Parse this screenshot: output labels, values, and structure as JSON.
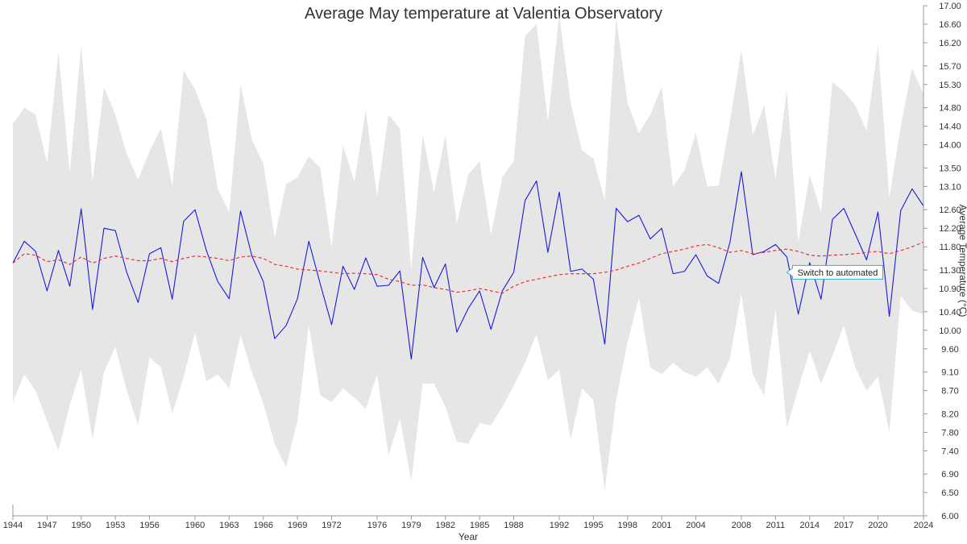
{
  "chart_data": {
    "type": "line",
    "title": "Average May temperature at Valentia Observatory",
    "xlabel": "Year",
    "ylabel": "Average Temperature (°C)",
    "xlim": [
      1944,
      2024
    ],
    "ylim": [
      6.0,
      17.0
    ],
    "x_ticks": [
      1944,
      1947,
      1950,
      1953,
      1956,
      1960,
      1963,
      1966,
      1969,
      1972,
      1976,
      1979,
      1982,
      1985,
      1988,
      1992,
      1995,
      1998,
      2001,
      2004,
      2008,
      2011,
      2014,
      2017,
      2020,
      2024
    ],
    "y_ticks": [
      6.0,
      6.5,
      6.9,
      7.4,
      7.8,
      8.2,
      8.7,
      9.1,
      9.6,
      10.0,
      10.4,
      10.9,
      11.3,
      11.8,
      12.2,
      12.6,
      13.1,
      13.5,
      14.0,
      14.4,
      14.8,
      15.3,
      15.7,
      16.2,
      16.6,
      17.0
    ],
    "y_ticks_label": [
      "6.00",
      "6.50",
      "6.90",
      "7.40",
      "7.80",
      "8.20",
      "8.70",
      "9.10",
      "9.60",
      "10.00",
      "10.40",
      "10.90",
      "11.30",
      "11.80",
      "12.20",
      "12.60",
      "13.10",
      "13.50",
      "14.00",
      "14.40",
      "14.80",
      "15.30",
      "15.70",
      "16.20",
      "16.60",
      "17.00"
    ],
    "years": [
      1944,
      1945,
      1946,
      1947,
      1948,
      1949,
      1950,
      1951,
      1952,
      1953,
      1954,
      1955,
      1956,
      1957,
      1958,
      1959,
      1960,
      1961,
      1962,
      1963,
      1964,
      1965,
      1966,
      1967,
      1968,
      1969,
      1970,
      1971,
      1972,
      1973,
      1974,
      1975,
      1976,
      1977,
      1978,
      1979,
      1980,
      1981,
      1982,
      1983,
      1984,
      1985,
      1986,
      1987,
      1988,
      1989,
      1990,
      1991,
      1992,
      1993,
      1994,
      1995,
      1996,
      1997,
      1998,
      1999,
      2000,
      2001,
      2002,
      2003,
      2004,
      2005,
      2006,
      2007,
      2008,
      2009,
      2010,
      2011,
      2012,
      2013,
      2014,
      2015,
      2016,
      2017,
      2018,
      2019,
      2020,
      2021,
      2022,
      2023,
      2024
    ],
    "series": [
      {
        "color": "#1a1adb",
        "style": "solid",
        "values": [
          11.45,
          11.92,
          11.7,
          10.85,
          11.72,
          10.95,
          12.62,
          10.45,
          12.2,
          12.15,
          11.25,
          10.6,
          11.65,
          11.78,
          10.67,
          12.35,
          12.6,
          11.72,
          11.05,
          10.68,
          12.57,
          11.6,
          11.05,
          9.82,
          10.1,
          10.68,
          11.92,
          11.0,
          10.12,
          11.38,
          10.88,
          11.56,
          10.95,
          10.97,
          11.28,
          9.38,
          11.57,
          10.92,
          11.43,
          9.96,
          10.47,
          10.85,
          10.02,
          10.85,
          11.25,
          12.8,
          13.22,
          11.68,
          12.98,
          11.27,
          11.32,
          11.1,
          9.7,
          12.63,
          12.34,
          12.48,
          11.97,
          12.2,
          11.22,
          11.27,
          11.63,
          11.17,
          11.01,
          11.9,
          13.42,
          11.63,
          11.7,
          11.85,
          11.58,
          10.35,
          11.46,
          10.67,
          12.39,
          12.63,
          12.08,
          11.52,
          12.55,
          10.3,
          12.58,
          13.05,
          12.68
        ]
      },
      {
        "color": "#e63333",
        "style": "dashed",
        "values": [
          11.45,
          11.65,
          11.62,
          11.48,
          11.52,
          11.42,
          11.58,
          11.45,
          11.55,
          11.6,
          11.55,
          11.5,
          11.5,
          11.55,
          11.48,
          11.55,
          11.6,
          11.58,
          11.55,
          11.5,
          11.58,
          11.6,
          11.55,
          11.42,
          11.38,
          11.32,
          11.3,
          11.28,
          11.25,
          11.22,
          11.23,
          11.22,
          11.2,
          11.1,
          11.05,
          10.97,
          10.98,
          10.92,
          10.88,
          10.82,
          10.85,
          10.9,
          10.85,
          10.8,
          10.95,
          11.05,
          11.1,
          11.15,
          11.2,
          11.22,
          11.22,
          11.22,
          11.25,
          11.3,
          11.38,
          11.45,
          11.55,
          11.65,
          11.7,
          11.75,
          11.82,
          11.85,
          11.78,
          11.68,
          11.72,
          11.65,
          11.68,
          11.72,
          11.75,
          11.7,
          11.62,
          11.6,
          11.62,
          11.63,
          11.65,
          11.68,
          11.7,
          11.65,
          11.72,
          11.8,
          11.9
        ]
      }
    ],
    "range_band": {
      "color": "#e6e6e6",
      "upper": [
        14.45,
        14.8,
        14.65,
        13.6,
        16.0,
        13.4,
        16.15,
        13.2,
        15.25,
        14.65,
        13.8,
        13.25,
        13.85,
        14.35,
        13.1,
        15.6,
        15.2,
        14.55,
        13.05,
        12.55,
        15.3,
        14.1,
        13.6,
        12.0,
        13.15,
        13.3,
        13.75,
        13.5,
        11.78,
        13.98,
        13.2,
        14.75,
        12.88,
        14.65,
        14.35,
        11.3,
        14.22,
        12.98,
        14.2,
        12.3,
        13.35,
        13.65,
        12.05,
        13.3,
        13.65,
        16.35,
        16.6,
        14.5,
        16.8,
        14.9,
        13.88,
        13.7,
        12.8,
        16.75,
        14.9,
        14.25,
        14.65,
        15.25,
        13.1,
        13.45,
        14.25,
        13.1,
        13.12,
        14.5,
        16.05,
        14.2,
        14.85,
        13.25,
        15.2,
        11.9,
        13.35,
        12.55,
        15.35,
        15.15,
        14.85,
        14.3,
        16.15,
        12.85,
        14.4,
        15.65,
        15.1
      ],
      "lower": [
        8.45,
        9.05,
        8.7,
        8.05,
        7.4,
        8.4,
        9.15,
        7.65,
        9.1,
        9.65,
        8.7,
        7.95,
        9.42,
        9.2,
        8.2,
        9.0,
        9.95,
        8.9,
        9.05,
        8.75,
        9.9,
        9.1,
        8.42,
        7.55,
        7.05,
        8.05,
        10.1,
        8.6,
        8.45,
        8.75,
        8.55,
        8.3,
        9.05,
        7.3,
        8.1,
        6.75,
        8.85,
        8.85,
        8.35,
        7.6,
        7.55,
        8.0,
        7.95,
        8.35,
        8.8,
        9.3,
        9.92,
        8.92,
        9.15,
        7.65,
        8.75,
        8.5,
        6.55,
        8.5,
        9.75,
        10.7,
        9.2,
        9.05,
        9.3,
        9.1,
        9.0,
        9.2,
        8.85,
        9.4,
        10.8,
        9.05,
        8.6,
        10.45,
        7.9,
        8.75,
        9.55,
        8.85,
        9.45,
        10.1,
        9.2,
        8.7,
        9.0,
        7.8,
        10.75,
        10.42,
        10.35
      ]
    },
    "annotations": [
      {
        "x": 2012,
        "y": 11.25,
        "text": "Switch to automated",
        "color": "#34b3c9"
      }
    ],
    "grid": false,
    "y_axis_position": "right"
  }
}
